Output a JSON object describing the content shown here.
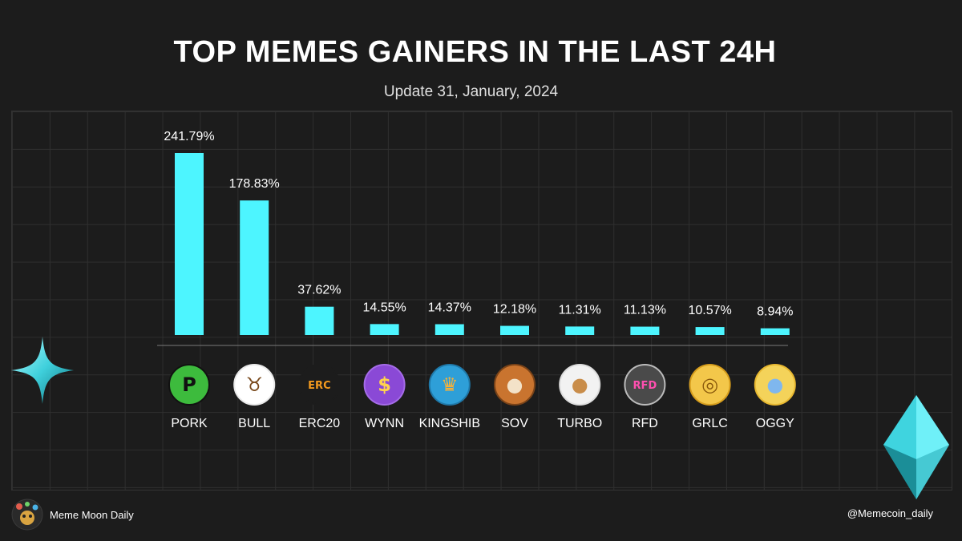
{
  "title": "TOP MEMES GAINERS IN THE LAST 24H",
  "subtitle": "Update 31, January, 2024",
  "footer": {
    "brand_name": "Meme Moon Daily",
    "handle": "@Memecoin_daily"
  },
  "colors": {
    "background": "#1c1c1c",
    "bar": "#4df5ff",
    "grid": "#2f2f2f",
    "text": "#ffffff"
  },
  "chart_data": {
    "type": "bar",
    "categories": [
      "PORK",
      "BULL",
      "ERC20",
      "WYNN",
      "KINGSHIB",
      "SOV",
      "TURBO",
      "RFD",
      "GRLC",
      "OGGY"
    ],
    "values": [
      241.79,
      178.83,
      37.62,
      14.55,
      14.37,
      12.18,
      11.31,
      11.13,
      10.57,
      8.94
    ],
    "data_labels": [
      "241.79%",
      "178.83%",
      "37.62%",
      "14.55%",
      "14.37%",
      "12.18%",
      "11.31%",
      "11.13%",
      "10.57%",
      "8.94%"
    ],
    "title": "TOP MEMES GAINERS IN THE LAST 24H",
    "xlabel": "",
    "ylabel": "",
    "grid": true,
    "legend": "none",
    "icons": [
      "pork-coin-icon",
      "bull-coin-icon",
      "erc20-coin-icon",
      "wynn-coin-icon",
      "kingshib-coin-icon",
      "sov-coin-icon",
      "turbo-coin-icon",
      "rfd-coin-icon",
      "grlc-coin-icon",
      "oggy-coin-icon"
    ]
  }
}
